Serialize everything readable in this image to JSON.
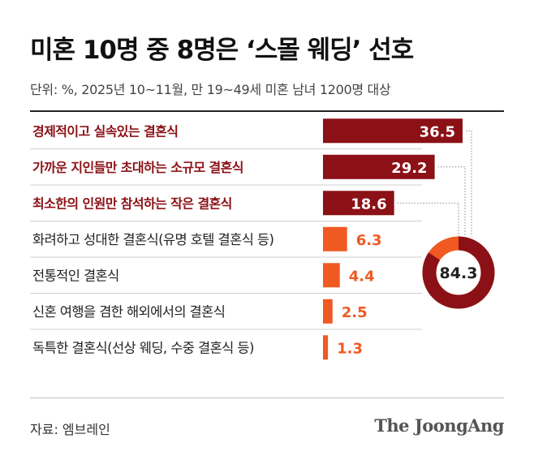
{
  "header": {
    "title": "미혼 10명 중 8명은 ‘스몰 웨딩’ 선호",
    "subtitle": "단위: %, 2025년 10~11월, 만 19~49세 미혼 남녀 1200명 대상"
  },
  "footer": {
    "source": "자료: 엠브레인",
    "logo": "The JoongAng"
  },
  "colors": {
    "highlight": "#8b1116",
    "normal": "#f05a22",
    "highlight_text": "#8b1116",
    "normal_text": "#222222"
  },
  "chart_data": {
    "type": "bar",
    "orientation": "horizontal",
    "unit": "%",
    "xlim": [
      0,
      36.5
    ],
    "grid": false,
    "categories": [
      "경제적이고 실속있는 결혼식",
      "가까운 지인들만 초대하는 소규모 결혼식",
      "최소한의 인원만 참석하는 작은 결혼식",
      "화려하고 성대한 결혼식(유명 호텔 결혼식 등)",
      "전통적인 결혼식",
      "신혼 여행을 겸한 해외에서의 결혼식",
      "독특한 결혼식(선상 웨딩, 수중 결혼식 등)"
    ],
    "values": [
      36.5,
      29.2,
      18.6,
      6.3,
      4.4,
      2.5,
      1.3
    ],
    "value_labels": [
      "36.5",
      "29.2",
      "18.6",
      "6.3",
      "4.4",
      "2.5",
      "1.3"
    ],
    "highlighted": [
      true,
      true,
      true,
      false,
      false,
      false,
      false
    ],
    "donut": {
      "value": 84.3,
      "label": "84.3",
      "total": 100
    }
  }
}
